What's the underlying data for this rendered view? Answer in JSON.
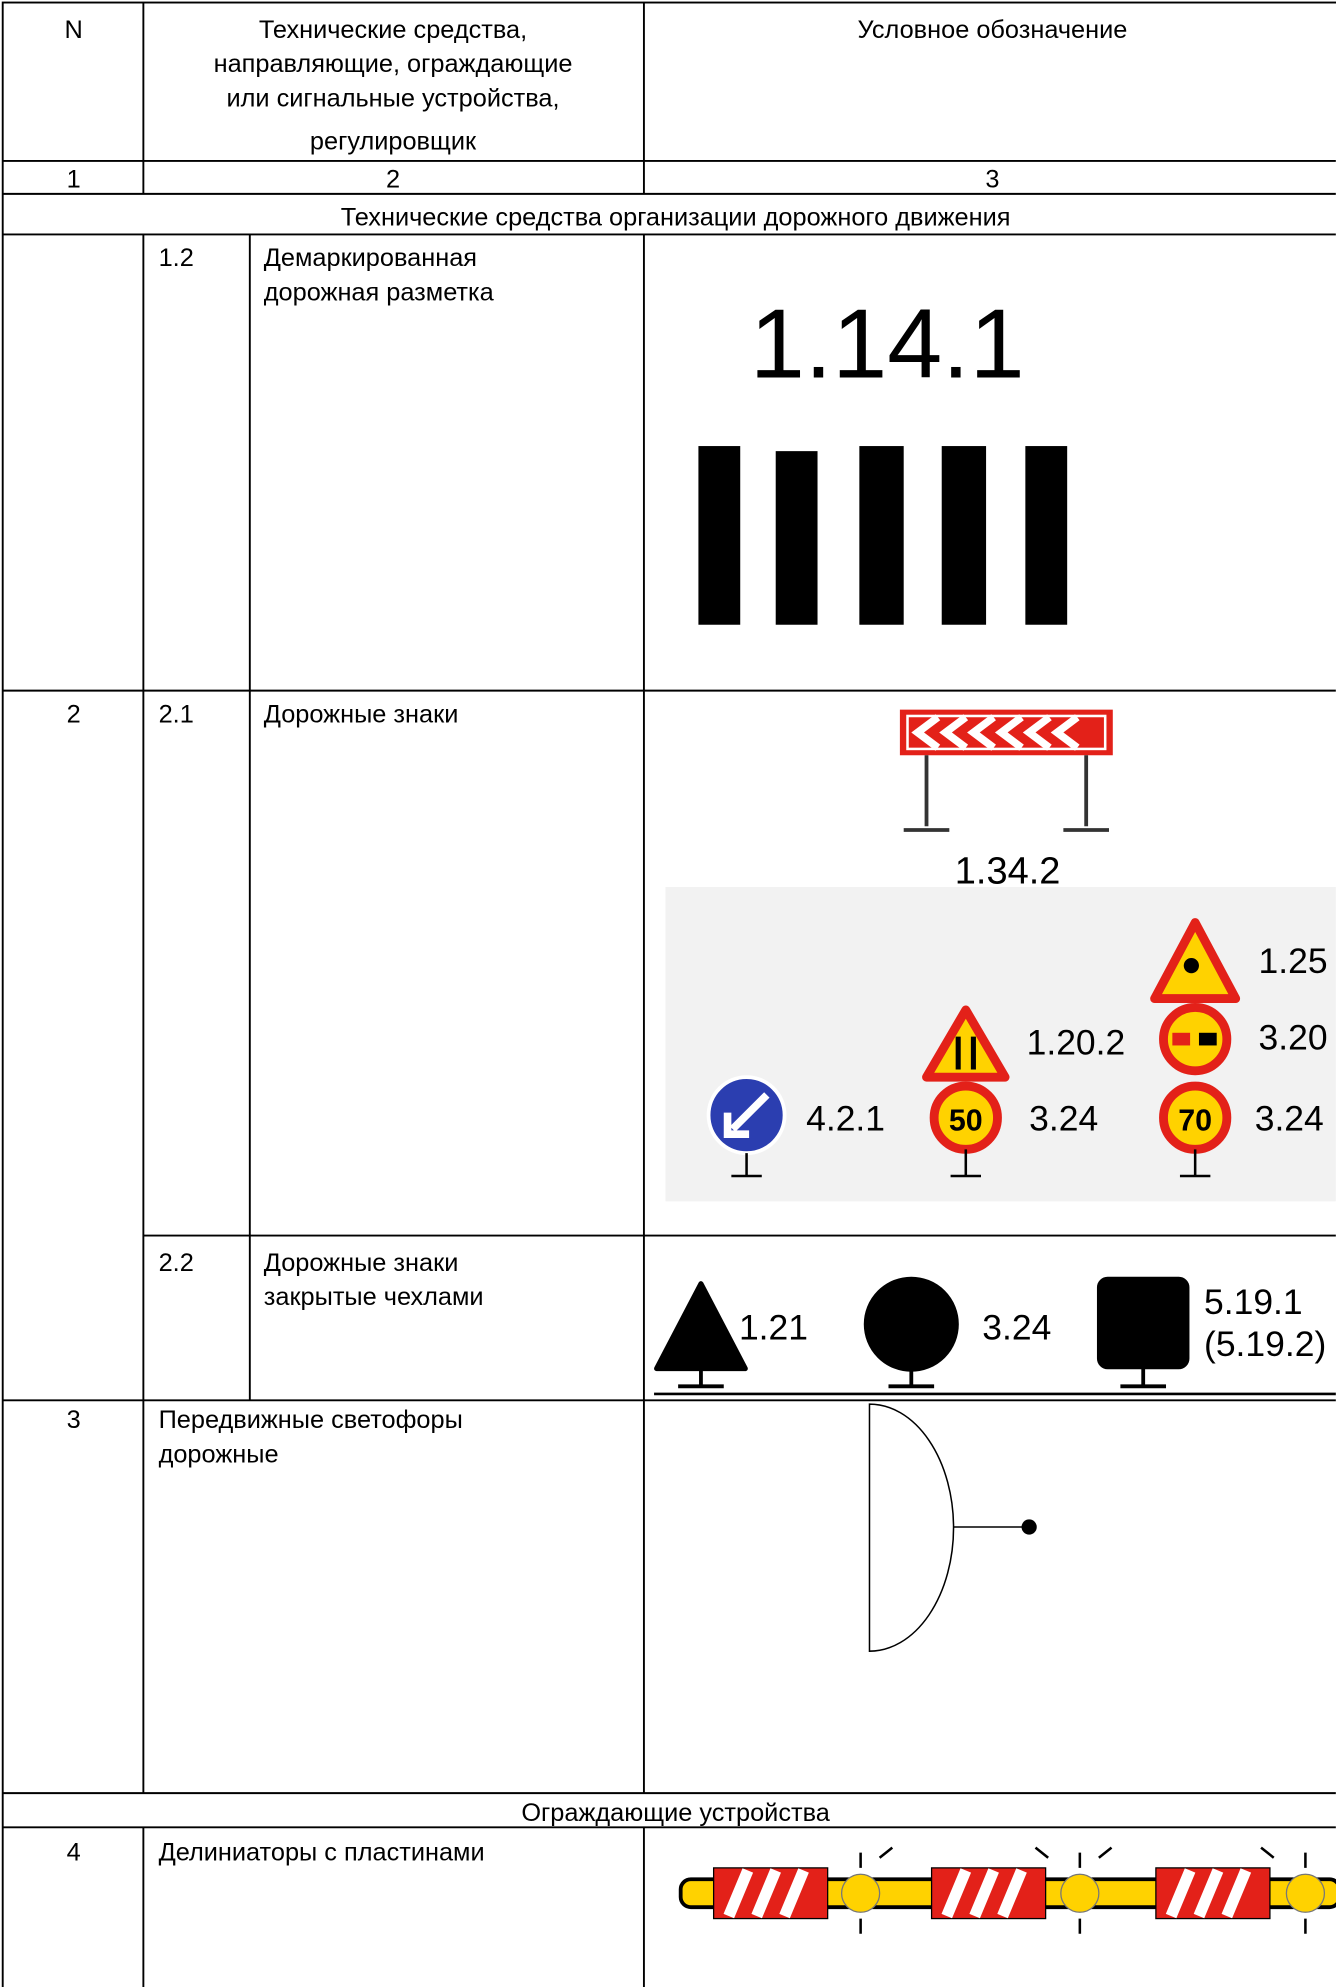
{
  "header": {
    "n": "N",
    "means": [
      "Технические средства,",
      "направляющие, ограждающие",
      "или сигнальные устройства,",
      "регулировщик"
    ],
    "symbol": "Условное обозначение"
  },
  "column_numbers": [
    "1",
    "2",
    "3"
  ],
  "sections": [
    "Технические средства организации дорожного движения",
    "Ограждающие устройства"
  ],
  "rows": [
    {
      "sub": "1.2",
      "name": [
        "Демаркированная",
        "дорожная разметка"
      ],
      "labels": [
        "1.14.1"
      ]
    },
    {
      "n": "2",
      "sub": "2.1",
      "name": [
        "Дорожные знаки"
      ],
      "labels": [
        "1.34.2",
        "1.25",
        "3.20",
        "1.20.2",
        "4.2.1",
        "50",
        "3.24",
        "70",
        "3.24"
      ]
    },
    {
      "sub": "2.2",
      "name": [
        "Дорожные знаки",
        "закрытые чехлами"
      ],
      "labels": [
        "1.21",
        "3.24",
        "5.19.1",
        "(5.19.2)"
      ]
    },
    {
      "n": "3",
      "name": [
        "Передвижные светофоры",
        "дорожные"
      ]
    },
    {
      "n": "4",
      "name": [
        "Делиниаторы с пластинами"
      ]
    }
  ]
}
